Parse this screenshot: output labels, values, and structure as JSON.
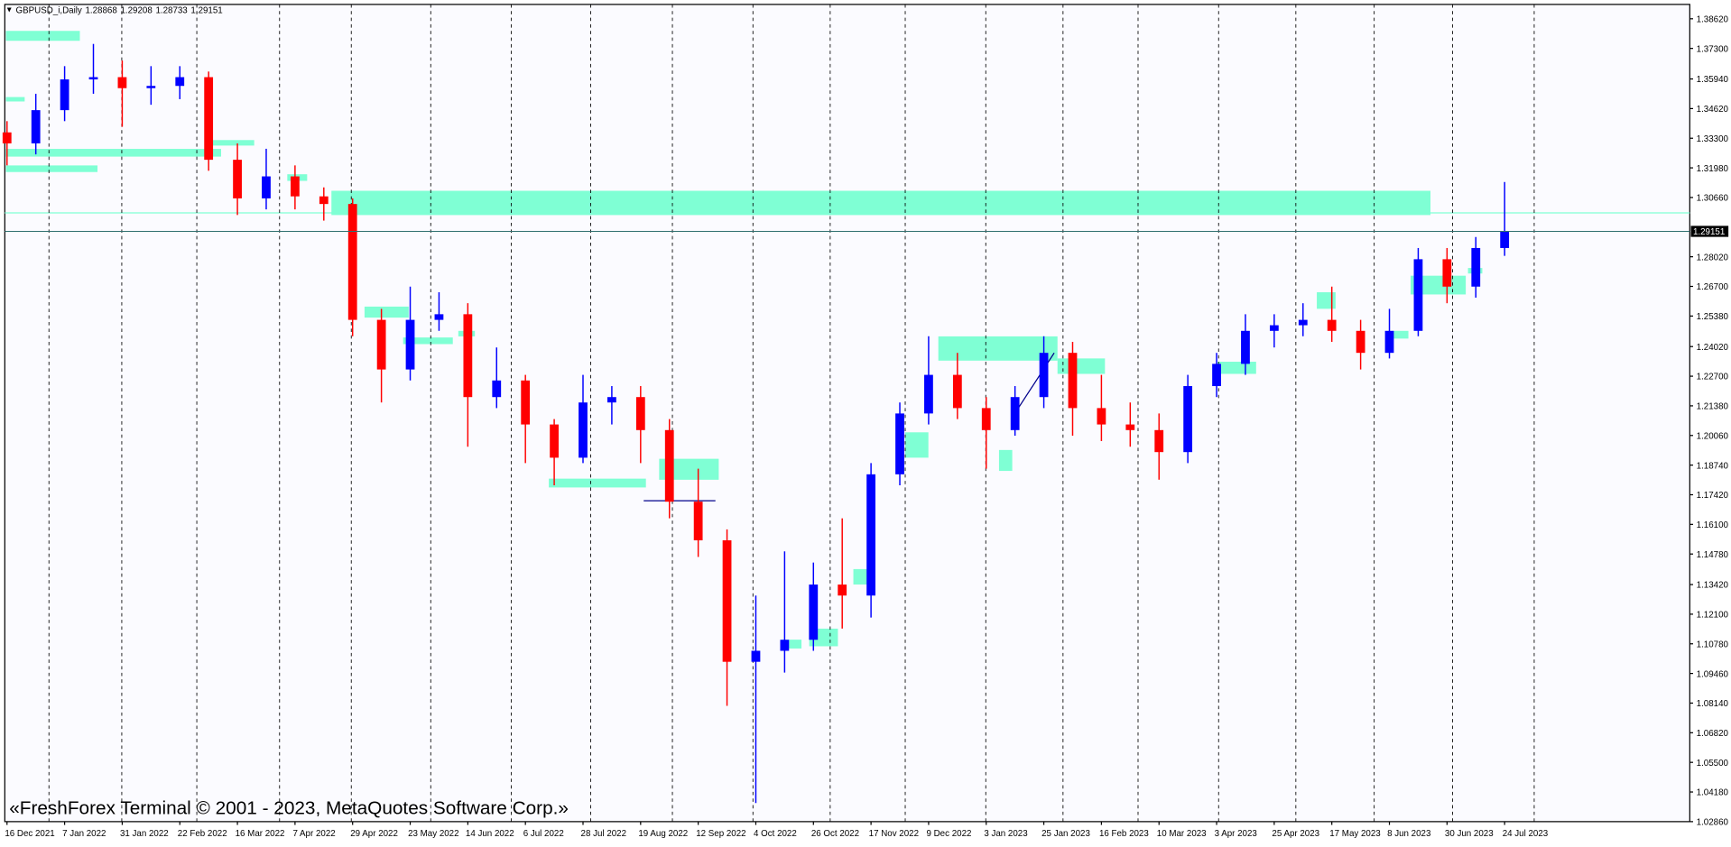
{
  "chart_data": {
    "type": "candlestick",
    "symbol": "GBPUSD_i,Daily",
    "ohlc": [
      1.28868,
      1.29208,
      1.28733,
      1.29151
    ],
    "watermark": "«FreshForex Terminal © 2001 - 2023, MetaQuotes Software Corp.»",
    "categories": [
      "16 Dec 2021",
      null,
      "7 Jan 2022",
      null,
      "31 Jan 2022",
      null,
      "22 Feb 2022",
      null,
      "16 Mar 2022",
      null,
      "7 Apr 2022",
      null,
      "29 Apr 2022",
      null,
      "23 May 2022",
      null,
      "14 Jun 2022",
      null,
      "6 Jul 2022",
      null,
      "28 Jul 2022",
      null,
      "19 Aug 2022",
      null,
      "12 Sep 2022",
      null,
      "4 Oct 2022",
      null,
      "26 Oct 2022",
      null,
      "17 Nov 2022",
      null,
      "9 Dec 2022",
      null,
      "3 Jan 2023",
      null,
      "25 Jan 2023",
      null,
      "16 Feb 2023",
      null,
      "10 Mar 2023",
      null,
      "3 Apr 2023",
      null,
      "25 Apr 2023",
      null,
      "17 May 2023",
      null,
      "8 Jun 2023",
      null,
      "30 Jun 2023",
      null,
      "24 Jul 2023"
    ],
    "open": [
      1.3356,
      1.3307,
      1.3455,
      1.3592,
      1.3602,
      1.3553,
      1.3563,
      1.3602,
      1.3234,
      1.3062,
      1.316,
      1.3071,
      1.3037,
      1.2521,
      1.23,
      1.2521,
      1.2546,
      1.2177,
      1.2251,
      1.2055,
      1.1907,
      1.2153,
      1.2177,
      1.203,
      1.1711,
      1.1539,
      1.0998,
      1.1047,
      1.1096,
      1.1342,
      1.1293,
      1.1833,
      1.2104,
      1.2276,
      1.2128,
      1.203,
      1.2177,
      1.2374,
      1.2128,
      1.2055,
      1.203,
      1.1932,
      1.2226,
      1.2325,
      1.2472,
      1.2497,
      1.2521,
      1.2472,
      1.2374,
      1.2472,
      1.2791,
      1.2669,
      1.2841
    ],
    "high": [
      1.3406,
      1.3528,
      1.3651,
      1.375,
      1.3676,
      1.3651,
      1.3651,
      1.3627,
      1.3307,
      1.3283,
      1.3209,
      1.3111,
      1.3062,
      1.257,
      1.2669,
      1.2644,
      1.2595,
      1.2398,
      1.2276,
      1.2079,
      1.2276,
      1.2226,
      1.2226,
      1.2079,
      1.1858,
      1.1588,
      1.1293,
      1.149,
      1.144,
      1.1637,
      1.1883,
      1.2153,
      1.2448,
      1.2374,
      1.2177,
      1.2226,
      1.2448,
      1.2423,
      1.2276,
      1.2153,
      1.2104,
      1.2276,
      1.2374,
      1.2546,
      1.2546,
      1.2595,
      1.2669,
      1.2521,
      1.257,
      1.2841,
      1.2841,
      1.289,
      1.3135
    ],
    "low": [
      1.3209,
      1.3258,
      1.3406,
      1.3528,
      1.3381,
      1.3479,
      1.3504,
      1.3185,
      1.2988,
      1.3013,
      1.3013,
      1.2963,
      1.2448,
      1.2153,
      1.2251,
      1.2472,
      1.1956,
      1.2128,
      1.1883,
      1.1784,
      1.1883,
      1.2055,
      1.1883,
      1.1637,
      1.1465,
      1.0802,
      1.0369,
      1.095,
      1.1047,
      1.1146,
      1.1195,
      1.1784,
      1.2055,
      1.2079,
      1.1858,
      1.2005,
      1.2128,
      1.2005,
      1.1981,
      1.1956,
      1.1809,
      1.1883,
      1.2177,
      1.2276,
      1.2398,
      1.2448,
      1.2423,
      1.23,
      1.2349,
      1.2448,
      1.2595,
      1.262,
      1.2806
    ],
    "close": [
      1.3307,
      1.3455,
      1.3592,
      1.3602,
      1.3553,
      1.3563,
      1.3602,
      1.3234,
      1.3062,
      1.316,
      1.3071,
      1.3037,
      1.2521,
      1.23,
      1.2521,
      1.2546,
      1.2177,
      1.2251,
      1.2055,
      1.1907,
      1.2153,
      1.2177,
      1.203,
      1.1711,
      1.1539,
      1.0998,
      1.1047,
      1.1096,
      1.1342,
      1.1293,
      1.1833,
      1.2104,
      1.2276,
      1.2128,
      1.203,
      1.2177,
      1.2374,
      1.2128,
      1.2055,
      1.203,
      1.1932,
      1.2226,
      1.2325,
      1.2472,
      1.2497,
      1.2521,
      1.2472,
      1.2374,
      1.2472,
      1.2791,
      1.2669,
      1.2841,
      1.2914
    ],
    "up_color": "#0000ff",
    "down_color": "#ff0000",
    "last_price": 1.29151,
    "ylim": [
      1.0286,
      1.3926
    ],
    "yticks": [
      {
        "value": 1.3862,
        "label": "1.38620"
      },
      {
        "value": 1.373,
        "label": "1.37300"
      },
      {
        "value": 1.3594,
        "label": "1.35940"
      },
      {
        "value": 1.3462,
        "label": "1.34620"
      },
      {
        "value": 1.333,
        "label": "1.33300"
      },
      {
        "value": 1.3198,
        "label": "1.31980"
      },
      {
        "value": 1.3066,
        "label": "1.30660"
      },
      {
        "value": 1.2802,
        "label": "1.28020"
      },
      {
        "value": 1.267,
        "label": "1.26700"
      },
      {
        "value": 1.2538,
        "label": "1.25380"
      },
      {
        "value": 1.2402,
        "label": "1.24020"
      },
      {
        "value": 1.227,
        "label": "1.22700"
      },
      {
        "value": 1.2138,
        "label": "1.21380"
      },
      {
        "value": 1.2006,
        "label": "1.20060"
      },
      {
        "value": 1.1874,
        "label": "1.18740"
      },
      {
        "value": 1.1742,
        "label": "1.17420"
      },
      {
        "value": 1.161,
        "label": "1.16100"
      },
      {
        "value": 1.1478,
        "label": "1.14780"
      },
      {
        "value": 1.1342,
        "label": "1.13420"
      },
      {
        "value": 1.121,
        "label": "1.12100"
      },
      {
        "value": 1.1078,
        "label": "1.10780"
      },
      {
        "value": 1.0946,
        "label": "1.09460"
      },
      {
        "value": 1.0814,
        "label": "1.08140"
      },
      {
        "value": 1.0682,
        "label": "1.06820"
      },
      {
        "value": 1.055,
        "label": "1.05500"
      },
      {
        "value": 1.0418,
        "label": "1.04180"
      },
      {
        "value": 1.0286,
        "label": "1.02860"
      }
    ],
    "grid": true
  }
}
